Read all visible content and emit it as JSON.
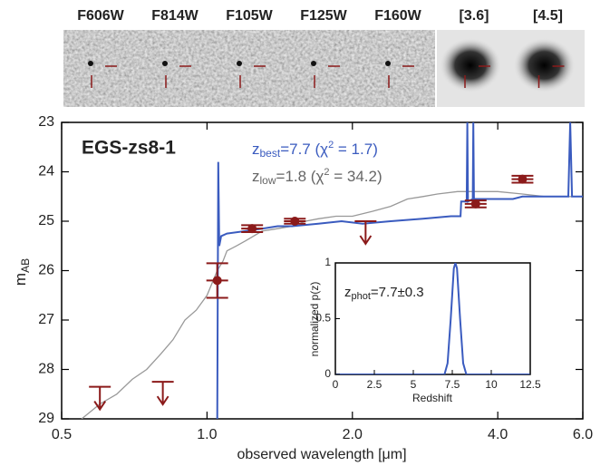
{
  "stamp_labels": [
    "F606W",
    "F814W",
    "F105W",
    "F125W",
    "F160W",
    "[3.6]",
    "[4.5]"
  ],
  "chart_data": [
    {
      "type": "sed",
      "title": "EGS-zs8-1",
      "annotations": [
        {
          "color": "#3a5bbf",
          "parts": [
            "z",
            "best",
            "=7.7 (χ",
            "2",
            " = 1.7)"
          ]
        },
        {
          "color": "#666666",
          "parts": [
            "z",
            "low",
            "=1.8 (χ",
            "2",
            " = 34.2)"
          ]
        }
      ],
      "y_label": [
        "m",
        "AB"
      ],
      "x_label": "observed wavelength [μm]",
      "xscale": "log",
      "xlim": [
        0.5,
        6.0
      ],
      "ylim": [
        29,
        23
      ],
      "xticks": [
        0.5,
        {
          "value": 1.0,
          "label": "1.0"
        },
        {
          "value": 2.0,
          "label": "2.0"
        },
        {
          "value": 4.0,
          "label": "4.0"
        },
        {
          "value": 6.0,
          "label": "6.0"
        }
      ],
      "yticks": [
        23,
        24,
        25,
        26,
        27,
        28,
        29
      ],
      "series": [
        {
          "color": "#999999",
          "x": [
            0.55,
            0.6,
            0.65,
            0.7,
            0.75,
            0.8,
            0.85,
            0.9,
            0.95,
            1.0,
            1.05,
            1.08,
            1.1,
            1.15,
            1.2,
            1.3,
            1.4,
            1.5,
            1.6,
            1.7,
            1.85,
            2.0,
            2.2,
            2.4,
            2.6,
            2.8,
            3.0,
            3.3,
            3.6,
            4.0,
            4.5,
            5.0,
            5.5,
            6.0
          ],
          "values": [
            29.0,
            28.7,
            28.5,
            28.2,
            28.0,
            27.7,
            27.4,
            27.0,
            26.8,
            26.5,
            26.0,
            25.8,
            25.6,
            25.5,
            25.4,
            25.2,
            25.15,
            25.1,
            25.0,
            24.95,
            24.9,
            24.9,
            24.8,
            24.7,
            24.55,
            24.5,
            24.45,
            24.4,
            24.4,
            24.4,
            24.45,
            24.5,
            24.5,
            24.5
          ]
        },
        {
          "color": "#3a5bbf",
          "x": [
            1.05,
            1.055,
            1.06,
            1.07,
            1.1,
            1.2,
            1.3,
            1.4,
            1.5,
            1.7,
            1.9,
            2.1,
            2.4,
            2.8,
            3.2,
            3.35,
            3.36,
            3.45,
            3.46,
            3.47,
            3.55,
            3.56,
            3.57,
            3.9,
            4.3,
            4.5,
            5.0,
            5.6,
            5.65,
            5.7,
            6.0
          ],
          "values": [
            29.0,
            23.8,
            25.5,
            25.3,
            25.25,
            25.2,
            25.15,
            25.1,
            25.1,
            25.05,
            25.0,
            25.05,
            25.0,
            24.95,
            24.9,
            24.9,
            24.6,
            24.6,
            23.0,
            24.6,
            24.55,
            23.0,
            24.55,
            24.55,
            24.55,
            24.5,
            24.5,
            24.5,
            23.0,
            24.5,
            24.5
          ]
        }
      ],
      "photometry": {
        "color": "#8b1a1a",
        "x": [
          0.6,
          0.81,
          1.05,
          1.24,
          1.52,
          2.13,
          3.6,
          4.5
        ],
        "values": [
          28.35,
          28.25,
          26.2,
          25.15,
          25.0,
          25.0,
          24.65,
          24.15
        ],
        "yerr": [
          null,
          null,
          0.35,
          0.07,
          0.05,
          null,
          0.07,
          0.07
        ],
        "upper_limit": [
          true,
          true,
          false,
          false,
          false,
          true,
          false,
          false
        ]
      }
    },
    {
      "type": "line",
      "annotation": [
        "z",
        "phot",
        "=7.7±0.3"
      ],
      "y_label": "normalized p(z)",
      "x_label": "Redshift",
      "xlim": [
        0,
        12.5
      ],
      "ylim": [
        0,
        1
      ],
      "xticks": [
        0,
        2.5,
        5,
        7.5,
        10,
        12.5
      ],
      "yticks": [
        0,
        0.5,
        1
      ],
      "color": "#3a5bbf",
      "x": [
        0,
        7.0,
        7.2,
        7.4,
        7.6,
        7.7,
        7.8,
        8.0,
        8.2,
        8.4,
        12.5
      ],
      "values": [
        0,
        0,
        0.1,
        0.5,
        0.95,
        1,
        0.95,
        0.5,
        0.1,
        0,
        0
      ]
    }
  ]
}
